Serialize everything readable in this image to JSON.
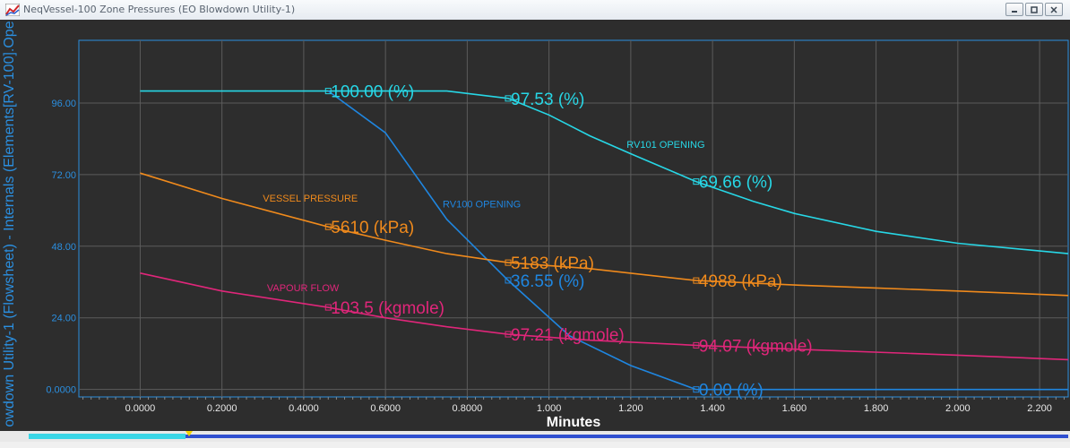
{
  "window": {
    "title": "NeqVessel-100 Zone Pressures (EO Blowdown Utility-1)",
    "app_icon": "chart-icon",
    "controls": [
      "minimize-icon",
      "restore-icon",
      "close-icon"
    ]
  },
  "colors": {
    "background": "#2d2d2d",
    "grid": "#5c5c5c",
    "axis": "#2b8fe0",
    "rv101": "#27d7e6",
    "rv100": "#1f86e0",
    "vessel_pressure": "#f08a1c",
    "vapour_flow": "#e0267a"
  },
  "chart_data": {
    "type": "line",
    "xlabel": "Minutes",
    "ylabel": "owdown Utility-1 (Flowsheet) - Internals (Elements[RV-100].Ope",
    "xlim": [
      -0.15,
      2.27
    ],
    "ylim": [
      -2.5,
      117
    ],
    "x_ticks": [
      0,
      0.2,
      0.4,
      0.6,
      0.8,
      1.0,
      1.2,
      1.4,
      1.6,
      1.8,
      2.0,
      2.2
    ],
    "x_tick_labels": [
      "0.0000",
      "0.2000",
      "0.4000",
      "0.6000",
      "0.8000",
      "1.000",
      "1.200",
      "1.400",
      "1.600",
      "1.800",
      "2.000",
      "2.200"
    ],
    "y_ticks": [
      0,
      24,
      48,
      72,
      96
    ],
    "y_tick_labels": [
      "0.0000",
      "24.00",
      "48.00",
      "72.00",
      "96.00"
    ],
    "grid": true,
    "series": [
      {
        "name": "RV101 OPENING",
        "color_key": "rv101",
        "x": [
          0.0,
          0.46,
          0.75,
          0.9,
          1.0,
          1.1,
          1.2,
          1.36,
          1.5,
          1.6,
          1.8,
          2.0,
          2.27
        ],
        "y": [
          100,
          100,
          100,
          97.53,
          92,
          85,
          79,
          69.66,
          63,
          59,
          53,
          49,
          45.5
        ]
      },
      {
        "name": "RV100 OPENING",
        "color_key": "rv100",
        "x": [
          0.46,
          0.6,
          0.75,
          0.9,
          1.05,
          1.2,
          1.36,
          1.6,
          2.27
        ],
        "y": [
          100,
          86,
          57,
          36.55,
          18,
          8,
          0,
          0,
          0
        ]
      },
      {
        "name": "VESSEL PRESSURE",
        "color_key": "vessel_pressure",
        "x": [
          0.0,
          0.2,
          0.46,
          0.6,
          0.75,
          0.9,
          1.1,
          1.36,
          1.6,
          1.8,
          2.0,
          2.27
        ],
        "y": [
          72.5,
          64,
          54.5,
          50,
          45.5,
          42.5,
          40.5,
          36.5,
          35,
          34,
          33,
          31.5
        ]
      },
      {
        "name": "VAPOUR FLOW",
        "color_key": "vapour_flow",
        "x": [
          0.0,
          0.2,
          0.46,
          0.6,
          0.75,
          0.9,
          1.1,
          1.36,
          1.6,
          2.0,
          2.27
        ],
        "y": [
          39,
          33,
          27.5,
          24,
          21,
          18.5,
          16.5,
          14.8,
          13.5,
          11.5,
          10
        ]
      }
    ],
    "annotations": [
      {
        "text": "100.00 (%)",
        "x": 0.46,
        "y": 100,
        "color_key": "rv101"
      },
      {
        "text": "97.53 (%)",
        "x": 0.9,
        "y": 97.53,
        "color_key": "rv101"
      },
      {
        "text": "69.66 (%)",
        "x": 1.36,
        "y": 69.66,
        "color_key": "rv101"
      },
      {
        "text": "36.55 (%)",
        "x": 0.9,
        "y": 36.55,
        "color_key": "rv100"
      },
      {
        "text": "0.00 (%)",
        "x": 1.36,
        "y": 0,
        "color_key": "rv100"
      },
      {
        "text": "5610 (kPa)",
        "x": 0.46,
        "y": 54.5,
        "color_key": "vessel_pressure"
      },
      {
        "text": "5183 (kPa)",
        "x": 0.9,
        "y": 42.5,
        "color_key": "vessel_pressure"
      },
      {
        "text": "4988 (kPa)",
        "x": 1.36,
        "y": 36.5,
        "color_key": "vessel_pressure"
      },
      {
        "text": "103.5 (kgmole)",
        "x": 0.46,
        "y": 27.5,
        "color_key": "vapour_flow"
      },
      {
        "text": "97.21 (kgmole)",
        "x": 0.9,
        "y": 18.5,
        "color_key": "vapour_flow"
      },
      {
        "text": "94.07 (kgmole)",
        "x": 1.36,
        "y": 14.8,
        "color_key": "vapour_flow"
      }
    ],
    "series_labels": [
      {
        "text": "RV101 OPENING",
        "x": 1.19,
        "y": 81,
        "color_key": "rv101"
      },
      {
        "text": "RV100 OPENING",
        "x": 0.74,
        "y": 61,
        "color_key": "rv100"
      },
      {
        "text": "VESSEL PRESSURE",
        "x": 0.3,
        "y": 63,
        "color_key": "vessel_pressure"
      },
      {
        "text": "VAPOUR FLOW",
        "x": 0.31,
        "y": 33,
        "color_key": "vapour_flow"
      }
    ]
  }
}
